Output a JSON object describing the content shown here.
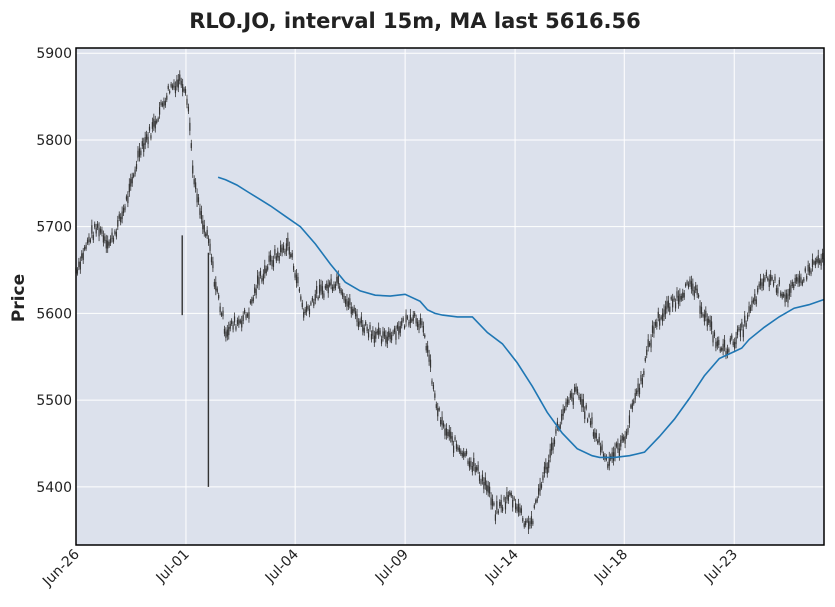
{
  "chart_data": {
    "type": "candlestick",
    "title": "RLO.JO, interval 15m, MA last 5616.56",
    "ylabel": "Price",
    "xlabel": "",
    "ylim": [
      5333,
      5906
    ],
    "y_ticks": [
      5400,
      5500,
      5600,
      5700,
      5800,
      5900
    ],
    "x_ticks": [
      {
        "label": "Jun-26",
        "pos": 0.0
      },
      {
        "label": "Jul-01",
        "pos": 0.147
      },
      {
        "label": "Jul-04",
        "pos": 0.293
      },
      {
        "label": "Jul-09",
        "pos": 0.44
      },
      {
        "label": "Jul-14",
        "pos": 0.587
      },
      {
        "label": "Jul-18",
        "pos": 0.733
      },
      {
        "label": "Jul-23",
        "pos": 0.88
      }
    ],
    "grid": true,
    "colors": {
      "background": "#dce1ec",
      "grid": "#ffffff",
      "candles": "#333333",
      "ma_line": "#1f77b4"
    },
    "price_series": {
      "name": "",
      "x": [
        0.0,
        0.01,
        0.02,
        0.03,
        0.045,
        0.06,
        0.075,
        0.085,
        0.1,
        0.115,
        0.125,
        0.14,
        0.147,
        0.15,
        0.158,
        0.17,
        0.178,
        0.185,
        0.19,
        0.2,
        0.215,
        0.23,
        0.245,
        0.26,
        0.273,
        0.283,
        0.293,
        0.305,
        0.32,
        0.335,
        0.35,
        0.365,
        0.38,
        0.395,
        0.41,
        0.425,
        0.44,
        0.45,
        0.46,
        0.47,
        0.48,
        0.49,
        0.505,
        0.52,
        0.535,
        0.55,
        0.56,
        0.57,
        0.58,
        0.59,
        0.6,
        0.61,
        0.62,
        0.632,
        0.64,
        0.65,
        0.66,
        0.67,
        0.68,
        0.69,
        0.7,
        0.71,
        0.72,
        0.73,
        0.738,
        0.745,
        0.755,
        0.765,
        0.775,
        0.785,
        0.795,
        0.805,
        0.815,
        0.825,
        0.84,
        0.85,
        0.86,
        0.87,
        0.88,
        0.89,
        0.9,
        0.91,
        0.92,
        0.93,
        0.94,
        0.95,
        0.96,
        0.97,
        0.98,
        0.99,
        1.0
      ],
      "close": [
        5650,
        5670,
        5690,
        5700,
        5680,
        5710,
        5750,
        5790,
        5810,
        5840,
        5860,
        5870,
        5860,
        5840,
        5750,
        5700,
        5680,
        5640,
        5620,
        5580,
        5590,
        5600,
        5640,
        5660,
        5670,
        5680,
        5650,
        5600,
        5620,
        5630,
        5640,
        5610,
        5590,
        5580,
        5570,
        5580,
        5590,
        5600,
        5590,
        5560,
        5500,
        5470,
        5450,
        5440,
        5420,
        5400,
        5370,
        5380,
        5390,
        5380,
        5360,
        5360,
        5400,
        5430,
        5460,
        5480,
        5500,
        5510,
        5490,
        5470,
        5450,
        5430,
        5440,
        5450,
        5470,
        5500,
        5520,
        5560,
        5590,
        5600,
        5610,
        5620,
        5630,
        5630,
        5600,
        5580,
        5560,
        5560,
        5570,
        5580,
        5600,
        5620,
        5640,
        5640,
        5630,
        5620,
        5630,
        5640,
        5650,
        5660,
        5660
      ]
    },
    "ma_series": {
      "name": "",
      "x": [
        0.19,
        0.2,
        0.215,
        0.23,
        0.245,
        0.26,
        0.28,
        0.3,
        0.32,
        0.34,
        0.36,
        0.38,
        0.4,
        0.42,
        0.44,
        0.46,
        0.47,
        0.48,
        0.49,
        0.51,
        0.53,
        0.55,
        0.57,
        0.59,
        0.61,
        0.63,
        0.65,
        0.67,
        0.69,
        0.7,
        0.72,
        0.74,
        0.76,
        0.78,
        0.8,
        0.82,
        0.84,
        0.86,
        0.87,
        0.88,
        0.89,
        0.9,
        0.92,
        0.94,
        0.96,
        0.98,
        1.0
      ],
      "values": [
        5757,
        5754,
        5748,
        5740,
        5732,
        5724,
        5712,
        5700,
        5680,
        5657,
        5636,
        5626,
        5621,
        5620,
        5622,
        5614,
        5604,
        5600,
        5598,
        5596,
        5596,
        5578,
        5565,
        5543,
        5516,
        5486,
        5462,
        5444,
        5436,
        5434,
        5434,
        5436,
        5440,
        5458,
        5478,
        5502,
        5528,
        5548,
        5552,
        5556,
        5560,
        5570,
        5584,
        5596,
        5606,
        5610,
        5616
      ]
    },
    "spikes": [
      {
        "x": 0.142,
        "low": 5598,
        "high": 5690
      },
      {
        "x": 0.177,
        "low": 5400,
        "high": 5670
      }
    ]
  }
}
